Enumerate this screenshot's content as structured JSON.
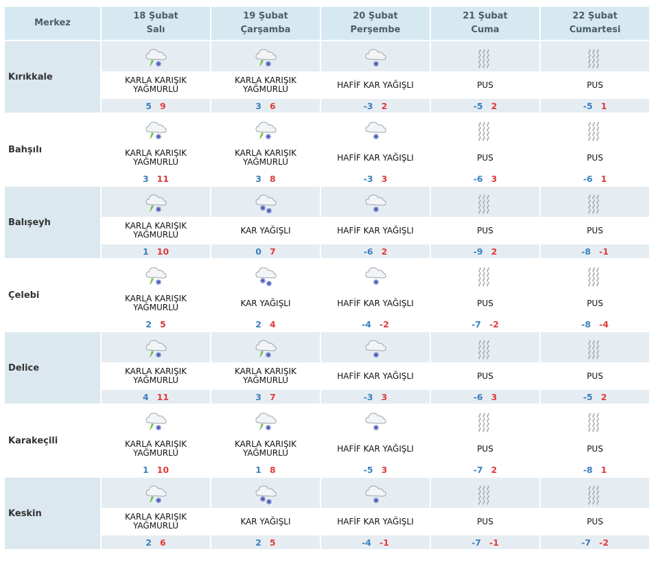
{
  "header": {
    "merkez_label": "Merkez",
    "days": [
      {
        "date": "18 Şubat",
        "weekday": "Salı"
      },
      {
        "date": "19 Şubat",
        "weekday": "Çarşamba"
      },
      {
        "date": "20 Şubat",
        "weekday": "Perşembe"
      },
      {
        "date": "21 Şubat",
        "weekday": "Cuma"
      },
      {
        "date": "22 Şubat",
        "weekday": "Cumartesi"
      }
    ]
  },
  "icons": {
    "sleet": "sleet-icon",
    "snow": "snow-icon",
    "light_snow": "light-snow-icon",
    "fog": "fog-icon"
  },
  "colors": {
    "min_temp": "#3a7fc0",
    "max_temp": "#e03a3a",
    "header_bg": "#d6e9f1"
  },
  "rows": [
    {
      "city": "Kırıkkale",
      "days": [
        {
          "icon": "sleet",
          "desc1": "KARLA KARIŞIK",
          "desc2": "YAĞMURLU",
          "min": "5",
          "max": "9"
        },
        {
          "icon": "sleet",
          "desc1": "KARLA KARIŞIK",
          "desc2": "YAĞMURLU",
          "min": "3",
          "max": "6"
        },
        {
          "icon": "light_snow",
          "desc1": "HAFİF KAR YAĞIŞLI",
          "desc2": "",
          "min": "-3",
          "max": "2"
        },
        {
          "icon": "fog",
          "desc1": "PUS",
          "desc2": "",
          "min": "-5",
          "max": "2"
        },
        {
          "icon": "fog",
          "desc1": "PUS",
          "desc2": "",
          "min": "-5",
          "max": "1"
        }
      ]
    },
    {
      "city": "Bahşılı",
      "days": [
        {
          "icon": "sleet",
          "desc1": "KARLA KARIŞIK",
          "desc2": "YAĞMURLU",
          "min": "3",
          "max": "11"
        },
        {
          "icon": "sleet",
          "desc1": "KARLA KARIŞIK",
          "desc2": "YAĞMURLU",
          "min": "3",
          "max": "8"
        },
        {
          "icon": "light_snow",
          "desc1": "HAFİF KAR YAĞIŞLI",
          "desc2": "",
          "min": "-3",
          "max": "3"
        },
        {
          "icon": "fog",
          "desc1": "PUS",
          "desc2": "",
          "min": "-6",
          "max": "3"
        },
        {
          "icon": "fog",
          "desc1": "PUS",
          "desc2": "",
          "min": "-6",
          "max": "1"
        }
      ]
    },
    {
      "city": "Balışeyh",
      "days": [
        {
          "icon": "sleet",
          "desc1": "KARLA KARIŞIK",
          "desc2": "YAĞMURLU",
          "min": "1",
          "max": "10"
        },
        {
          "icon": "snow",
          "desc1": "KAR YAĞIŞLI",
          "desc2": "",
          "min": "0",
          "max": "7"
        },
        {
          "icon": "light_snow",
          "desc1": "HAFİF KAR YAĞIŞLI",
          "desc2": "",
          "min": "-6",
          "max": "2"
        },
        {
          "icon": "fog",
          "desc1": "PUS",
          "desc2": "",
          "min": "-9",
          "max": "2"
        },
        {
          "icon": "fog",
          "desc1": "PUS",
          "desc2": "",
          "min": "-8",
          "max": "-1"
        }
      ]
    },
    {
      "city": "Çelebi",
      "days": [
        {
          "icon": "sleet",
          "desc1": "KARLA KARIŞIK",
          "desc2": "YAĞMURLU",
          "min": "2",
          "max": "5"
        },
        {
          "icon": "snow",
          "desc1": "KAR YAĞIŞLI",
          "desc2": "",
          "min": "2",
          "max": "4"
        },
        {
          "icon": "light_snow",
          "desc1": "HAFİF KAR YAĞIŞLI",
          "desc2": "",
          "min": "-4",
          "max": "-2"
        },
        {
          "icon": "fog",
          "desc1": "PUS",
          "desc2": "",
          "min": "-7",
          "max": "-2"
        },
        {
          "icon": "fog",
          "desc1": "PUS",
          "desc2": "",
          "min": "-8",
          "max": "-4"
        }
      ]
    },
    {
      "city": "Delice",
      "days": [
        {
          "icon": "sleet",
          "desc1": "KARLA KARIŞIK",
          "desc2": "YAĞMURLU",
          "min": "4",
          "max": "11"
        },
        {
          "icon": "sleet",
          "desc1": "KARLA KARIŞIK",
          "desc2": "YAĞMURLU",
          "min": "3",
          "max": "7"
        },
        {
          "icon": "light_snow",
          "desc1": "HAFİF KAR YAĞIŞLI",
          "desc2": "",
          "min": "-3",
          "max": "3"
        },
        {
          "icon": "fog",
          "desc1": "PUS",
          "desc2": "",
          "min": "-6",
          "max": "3"
        },
        {
          "icon": "fog",
          "desc1": "PUS",
          "desc2": "",
          "min": "-5",
          "max": "2"
        }
      ]
    },
    {
      "city": "Karakeçili",
      "days": [
        {
          "icon": "sleet",
          "desc1": "KARLA KARIŞIK",
          "desc2": "YAĞMURLU",
          "min": "1",
          "max": "10"
        },
        {
          "icon": "sleet",
          "desc1": "KARLA KARIŞIK",
          "desc2": "YAĞMURLU",
          "min": "1",
          "max": "8"
        },
        {
          "icon": "light_snow",
          "desc1": "HAFİF KAR YAĞIŞLI",
          "desc2": "",
          "min": "-5",
          "max": "3"
        },
        {
          "icon": "fog",
          "desc1": "PUS",
          "desc2": "",
          "min": "-7",
          "max": "2"
        },
        {
          "icon": "fog",
          "desc1": "PUS",
          "desc2": "",
          "min": "-8",
          "max": "1"
        }
      ]
    },
    {
      "city": "Keskin",
      "days": [
        {
          "icon": "sleet",
          "desc1": "KARLA KARIŞIK",
          "desc2": "YAĞMURLU",
          "min": "2",
          "max": "6"
        },
        {
          "icon": "snow",
          "desc1": "KAR YAĞIŞLI",
          "desc2": "",
          "min": "2",
          "max": "5"
        },
        {
          "icon": "light_snow",
          "desc1": "HAFİF KAR YAĞIŞLI",
          "desc2": "",
          "min": "-4",
          "max": "-1"
        },
        {
          "icon": "fog",
          "desc1": "PUS",
          "desc2": "",
          "min": "-7",
          "max": "-1"
        },
        {
          "icon": "fog",
          "desc1": "PUS",
          "desc2": "",
          "min": "-7",
          "max": "-2"
        }
      ]
    }
  ]
}
